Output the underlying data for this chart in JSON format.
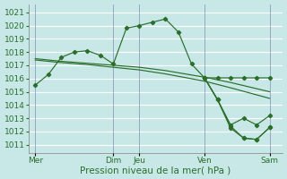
{
  "bg_color": "#c8e8e8",
  "grid_color": "#ffffff",
  "line_color": "#2a6e2a",
  "marker_color": "#2a6e2a",
  "yticks": [
    1011,
    1012,
    1013,
    1014,
    1015,
    1016,
    1017,
    1018,
    1019,
    1020,
    1021
  ],
  "xlabel": "Pression niveau de la mer( hPa )",
  "xlabel_fontsize": 7.5,
  "tick_fontsize": 6.5,
  "day_labels": [
    "Mer",
    "Dim",
    "Jeu",
    "Ven",
    "Sam"
  ],
  "day_positions": [
    0,
    6,
    8,
    13,
    18
  ],
  "vline_positions": [
    0,
    6,
    8,
    13,
    18
  ],
  "vline_color": "#7070a0",
  "xlim": [
    -0.5,
    19.0
  ],
  "ylim": [
    1010.4,
    1021.6
  ],
  "series1_x": [
    0,
    1,
    2,
    3,
    4,
    5,
    6,
    7,
    8,
    9,
    10,
    11,
    12,
    13,
    14,
    15,
    16,
    17,
    18
  ],
  "series1_y": [
    1015.5,
    1016.3,
    1017.6,
    1018.0,
    1018.1,
    1017.75,
    1017.1,
    1019.8,
    1020.0,
    1020.25,
    1020.5,
    1019.5,
    1017.1,
    1016.05,
    1016.05,
    1016.05,
    1016.05,
    1016.05,
    1016.05
  ],
  "series2_x": [
    0,
    2,
    4,
    6,
    8,
    10,
    13,
    15,
    18
  ],
  "series2_y": [
    1017.5,
    1017.3,
    1017.15,
    1017.0,
    1016.85,
    1016.6,
    1016.1,
    1015.7,
    1015.0
  ],
  "series3_x": [
    0,
    2,
    4,
    6,
    8,
    10,
    13,
    15,
    18
  ],
  "series3_y": [
    1017.4,
    1017.2,
    1017.05,
    1016.85,
    1016.65,
    1016.35,
    1015.8,
    1015.3,
    1014.5
  ],
  "series4_x": [
    13,
    14,
    15,
    16,
    17,
    18
  ],
  "series4_y": [
    1016.05,
    1014.4,
    1012.5,
    1013.0,
    1012.5,
    1013.2
  ],
  "series5_x": [
    13,
    14,
    15,
    16,
    17,
    18
  ],
  "series5_y": [
    1016.05,
    1014.4,
    1012.4,
    1011.5,
    1011.4,
    1012.3
  ],
  "series6_x": [
    13,
    14,
    15,
    16,
    17,
    18
  ],
  "series6_y": [
    1016.05,
    1014.4,
    1012.25,
    1011.5,
    1011.4,
    1012.3
  ]
}
